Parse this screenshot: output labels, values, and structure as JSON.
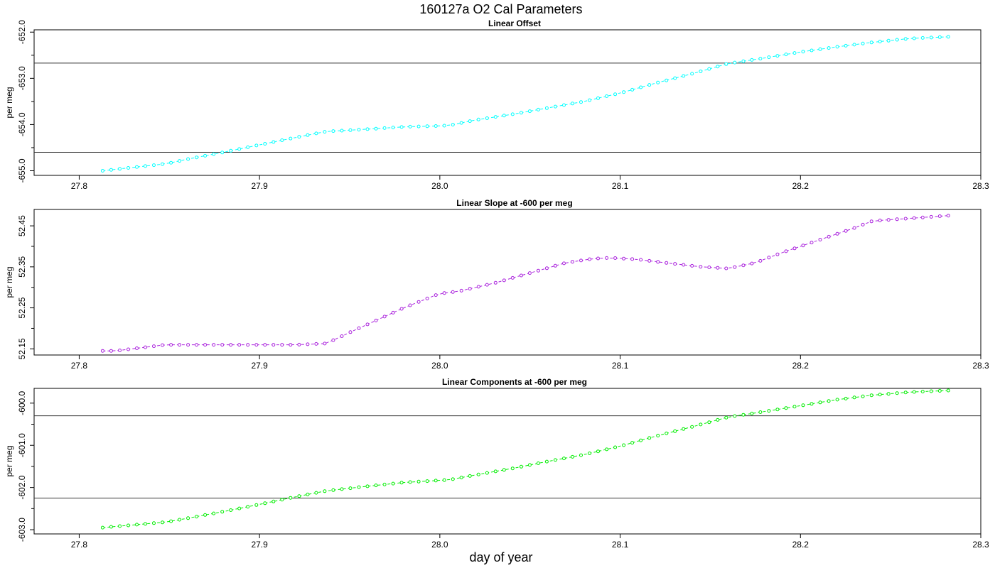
{
  "figure": {
    "title": "160127a   O2 Cal Parameters",
    "xlabel": "day of year"
  },
  "chart_data": [
    {
      "type": "line",
      "title": "Linear Offset",
      "ylabel": "per meg",
      "color": "#00ffff",
      "xlim": [
        27.775,
        28.3
      ],
      "ylim": [
        -655.1,
        -651.95
      ],
      "xticks": [
        "27.8",
        "27.9",
        "28.0",
        "28.1",
        "28.2",
        "28.3"
      ],
      "yticks": [
        "-652.0",
        "-653.0",
        "-654.0",
        "-655.0"
      ],
      "hlines": [
        -652.67,
        -654.6
      ],
      "x": [
        27.813,
        27.848,
        27.86,
        27.88,
        27.9,
        27.92,
        27.937,
        27.96,
        27.98,
        28.0,
        28.005,
        28.02,
        28.04,
        28.06,
        28.08,
        28.1,
        28.12,
        28.14,
        28.16,
        28.18,
        28.2,
        28.22,
        28.24,
        28.26,
        28.282
      ],
      "series": [
        {
          "values": [
            -655.0,
            -654.85,
            -654.75,
            -654.6,
            -654.44,
            -654.28,
            -654.15,
            -654.1,
            -654.05,
            -654.03,
            -654.02,
            -653.9,
            -653.78,
            -653.64,
            -653.5,
            -653.32,
            -653.1,
            -652.9,
            -652.68,
            -652.56,
            -652.43,
            -652.32,
            -652.22,
            -652.14,
            -652.1
          ]
        }
      ]
    },
    {
      "type": "line",
      "title": "Linear Slope at -600 per meg",
      "ylabel": "per meg",
      "color": "#aa22dd",
      "xlim": [
        27.775,
        28.3
      ],
      "ylim": [
        52.135,
        52.49
      ],
      "xticks": [
        "27.8",
        "27.9",
        "28.0",
        "28.1",
        "28.2",
        "28.3"
      ],
      "yticks": [
        "52.15",
        "52.25",
        "52.35",
        "52.45"
      ],
      "hlines": [],
      "x": [
        27.813,
        27.82,
        27.848,
        27.87,
        27.9,
        27.92,
        27.937,
        27.95,
        27.965,
        27.98,
        28.0,
        28.01,
        28.03,
        28.05,
        28.07,
        28.085,
        28.095,
        28.11,
        28.125,
        28.145,
        28.16,
        28.175,
        28.19,
        28.21,
        28.23,
        28.24,
        28.26,
        28.282
      ],
      "series": [
        {
          "values": [
            52.145,
            52.145,
            52.16,
            52.16,
            52.16,
            52.16,
            52.163,
            52.19,
            52.22,
            52.25,
            52.285,
            52.29,
            52.31,
            52.335,
            52.36,
            52.37,
            52.372,
            52.368,
            52.36,
            52.35,
            52.346,
            52.36,
            52.385,
            52.415,
            52.445,
            52.462,
            52.468,
            52.475
          ]
        }
      ]
    },
    {
      "type": "line",
      "title": "Linear Components at -600 per meg",
      "ylabel": "per meg",
      "color": "#00ee00",
      "xlim": [
        27.775,
        28.3
      ],
      "ylim": [
        -603.1,
        -599.65
      ],
      "xticks": [
        "27.8",
        "27.9",
        "28.0",
        "28.1",
        "28.2",
        "28.3"
      ],
      "yticks": [
        "-600.0",
        "-601.0",
        "-602.0",
        "-603.0"
      ],
      "hlines": [
        -600.3,
        -602.25
      ],
      "x": [
        27.813,
        27.848,
        27.86,
        27.88,
        27.9,
        27.92,
        27.937,
        27.96,
        27.98,
        28.0,
        28.005,
        28.02,
        28.04,
        28.06,
        28.08,
        28.1,
        28.12,
        28.14,
        28.16,
        28.18,
        28.2,
        28.22,
        28.24,
        28.26,
        28.282
      ],
      "series": [
        {
          "values": [
            -602.95,
            -602.82,
            -602.73,
            -602.57,
            -602.4,
            -602.22,
            -602.08,
            -601.97,
            -601.88,
            -601.83,
            -601.82,
            -601.7,
            -601.55,
            -601.38,
            -601.22,
            -601.02,
            -600.78,
            -600.56,
            -600.33,
            -600.2,
            -600.06,
            -599.92,
            -599.81,
            -599.74,
            -599.7
          ]
        }
      ]
    }
  ]
}
